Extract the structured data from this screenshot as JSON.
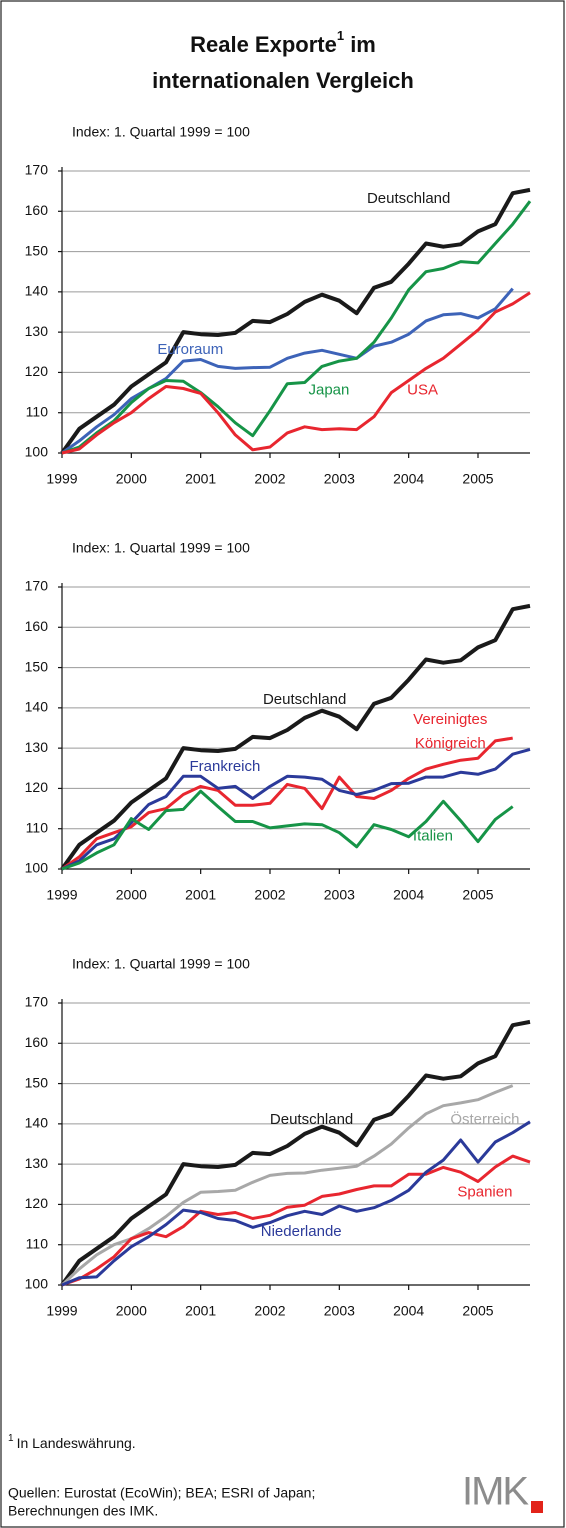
{
  "title_parts": [
    "Reale Exporte",
    "1",
    " im",
    "internationalen Vergleich"
  ],
  "chart_data": [
    {
      "type": "line",
      "subtitle": "Index: 1. Quartal 1999 = 100",
      "x": [
        1999,
        1999.25,
        1999.5,
        1999.75,
        2000,
        2000.25,
        2000.5,
        2000.75,
        2001,
        2001.25,
        2001.5,
        2001.75,
        2002,
        2002.25,
        2002.5,
        2002.75,
        2003,
        2003.25,
        2003.5,
        2003.75,
        2004,
        2004.25,
        2004.5,
        2004.75,
        2005,
        2005.25,
        2005.5,
        2005.75
      ],
      "xlim": [
        1999,
        2005.75
      ],
      "xticks": [
        1999,
        2000,
        2001,
        2002,
        2003,
        2004,
        2005
      ],
      "ylim": [
        100,
        170
      ],
      "yticks": [
        100,
        110,
        120,
        130,
        140,
        150,
        160,
        170
      ],
      "grid": true,
      "series": [
        {
          "name": "Deutschland",
          "color": "#1a1a1a",
          "values": [
            100,
            106,
            109,
            112,
            116.5,
            119.5,
            122.5,
            130,
            129.5,
            129.3,
            129.8,
            132.8,
            132.5,
            134.5,
            137.5,
            139.3,
            137.8,
            134.7,
            141,
            142.5,
            147,
            152,
            151.2,
            151.8,
            155,
            156.8,
            164.5,
            165.3
          ]
        },
        {
          "name": "Euroraum",
          "color": "#3d63b8",
          "values": [
            100,
            103,
            106.5,
            109.5,
            113.5,
            116,
            118.5,
            122.8,
            123.2,
            121.5,
            121,
            121.2,
            121.3,
            123.5,
            124.8,
            125.5,
            124.5,
            123.5,
            126.5,
            127.5,
            129.5,
            132.8,
            134.3,
            134.6,
            133.5,
            135.8,
            140.8,
            null
          ]
        },
        {
          "name": "Japan",
          "color": "#169447",
          "values": [
            100,
            101.5,
            105,
            108,
            112.5,
            116,
            118,
            117.8,
            115,
            111.5,
            107.5,
            104.3,
            110.5,
            117.2,
            117.5,
            121.5,
            122.8,
            123.5,
            127.5,
            133.5,
            140.5,
            145,
            145.8,
            147.5,
            147.2,
            152,
            156.8,
            162.5
          ]
        },
        {
          "name": "USA",
          "color": "#e8262f",
          "values": [
            100,
            101,
            104.5,
            107.5,
            110,
            113.5,
            116.5,
            116,
            114.8,
            110,
            104.5,
            100.8,
            101.5,
            105,
            106.5,
            105.8,
            106,
            105.8,
            109,
            115,
            118,
            121,
            123.5,
            127,
            130.5,
            135,
            137,
            139.8
          ]
        }
      ]
    },
    {
      "type": "line",
      "subtitle": "Index: 1. Quartal 1999 = 100",
      "x": [
        1999,
        1999.25,
        1999.5,
        1999.75,
        2000,
        2000.25,
        2000.5,
        2000.75,
        2001,
        2001.25,
        2001.5,
        2001.75,
        2002,
        2002.25,
        2002.5,
        2002.75,
        2003,
        2003.25,
        2003.5,
        2003.75,
        2004,
        2004.25,
        2004.5,
        2004.75,
        2005,
        2005.25,
        2005.5,
        2005.75
      ],
      "xlim": [
        1999,
        2005.75
      ],
      "xticks": [
        1999,
        2000,
        2001,
        2002,
        2003,
        2004,
        2005
      ],
      "ylim": [
        100,
        170
      ],
      "yticks": [
        100,
        110,
        120,
        130,
        140,
        150,
        160,
        170
      ],
      "grid": true,
      "series": [
        {
          "name": "Deutschland",
          "color": "#1a1a1a",
          "values": [
            100,
            106,
            109,
            112,
            116.5,
            119.5,
            122.5,
            130,
            129.5,
            129.3,
            129.8,
            132.8,
            132.5,
            134.5,
            137.5,
            139.3,
            137.8,
            134.7,
            141,
            142.5,
            147,
            152,
            151.2,
            151.8,
            155,
            156.8,
            164.5,
            165.3
          ]
        },
        {
          "name": "Vereinigtes Königreich",
          "color": "#e8262f",
          "values": [
            100,
            103,
            107.5,
            109,
            110.5,
            114,
            115,
            118.5,
            120.5,
            119.5,
            115.8,
            115.8,
            116.3,
            121,
            120,
            115,
            122.8,
            118,
            117.5,
            119.5,
            122.5,
            124.8,
            126,
            127,
            127.5,
            131.8,
            132.5,
            null
          ]
        },
        {
          "name": "Frankreich",
          "color": "#2b3a9a",
          "values": [
            100,
            102,
            106,
            107.5,
            111.5,
            116,
            118,
            123,
            123,
            120,
            120.5,
            117.5,
            120.5,
            123,
            122.8,
            122.3,
            119.5,
            118.5,
            119.5,
            121.2,
            121.3,
            122.8,
            122.8,
            124,
            123.5,
            124.8,
            128.5,
            129.7
          ]
        },
        {
          "name": "Italien",
          "color": "#169447",
          "values": [
            100,
            101.5,
            104,
            106,
            112.5,
            109.8,
            114.5,
            114.8,
            119.3,
            115.5,
            111.8,
            111.8,
            110.2,
            110.7,
            111.2,
            111,
            109,
            105.5,
            111,
            109.8,
            108,
            111.8,
            116.8,
            112,
            106.8,
            112.3,
            115.5,
            null
          ]
        }
      ]
    },
    {
      "type": "line",
      "subtitle": "Index: 1. Quartal 1999 = 100",
      "x": [
        1999,
        1999.25,
        1999.5,
        1999.75,
        2000,
        2000.25,
        2000.5,
        2000.75,
        2001,
        2001.25,
        2001.5,
        2001.75,
        2002,
        2002.25,
        2002.5,
        2002.75,
        2003,
        2003.25,
        2003.5,
        2003.75,
        2004,
        2004.25,
        2004.5,
        2004.75,
        2005,
        2005.25,
        2005.5,
        2005.75
      ],
      "xlim": [
        1999,
        2005.75
      ],
      "xticks": [
        1999,
        2000,
        2001,
        2002,
        2003,
        2004,
        2005
      ],
      "ylim": [
        100,
        170
      ],
      "yticks": [
        100,
        110,
        120,
        130,
        140,
        150,
        160,
        170
      ],
      "grid": true,
      "series": [
        {
          "name": "Deutschland",
          "color": "#1a1a1a",
          "values": [
            100,
            106,
            109,
            112,
            116.5,
            119.5,
            122.5,
            130,
            129.5,
            129.3,
            129.8,
            132.8,
            132.5,
            134.5,
            137.5,
            139.3,
            137.8,
            134.7,
            141,
            142.5,
            147,
            152,
            151.2,
            151.8,
            155,
            156.8,
            164.5,
            165.3
          ]
        },
        {
          "name": "Österreich",
          "color": "#a8a8a8",
          "values": [
            100,
            104,
            107.5,
            110,
            111.5,
            114,
            117,
            120.5,
            123,
            123.2,
            123.5,
            125.5,
            127.2,
            127.7,
            127.8,
            128.5,
            129,
            129.5,
            132,
            135,
            139,
            142.5,
            144.5,
            145.2,
            146,
            147.8,
            149.5,
            null
          ]
        },
        {
          "name": "Spanien",
          "color": "#e8262f",
          "values": [
            100,
            101.5,
            104,
            107,
            111.5,
            113,
            112,
            114.5,
            118.3,
            117.5,
            118,
            116.5,
            117.3,
            119.3,
            119.8,
            122,
            122.6,
            123.7,
            124.6,
            124.6,
            127.5,
            127.5,
            129.2,
            128,
            125.7,
            129.3,
            132,
            130.5
          ]
        },
        {
          "name": "Niederlande",
          "color": "#2b3a9a",
          "values": [
            100,
            101.8,
            102,
            106,
            109.5,
            112,
            115,
            118.6,
            118,
            116.5,
            116,
            114.3,
            115.5,
            117.2,
            118.3,
            117.5,
            119.6,
            118.3,
            119.2,
            121,
            123.5,
            128,
            131,
            136,
            130.5,
            135.5,
            137.8,
            140.5
          ]
        }
      ]
    }
  ],
  "footnote": {
    "mark": "1",
    "text": "In Landeswährung."
  },
  "sources": [
    "Quellen: Eurostat (EcoWin); BEA; ESRI of Japan;",
    "Berechnungen des IMK."
  ],
  "logo": "IMK"
}
